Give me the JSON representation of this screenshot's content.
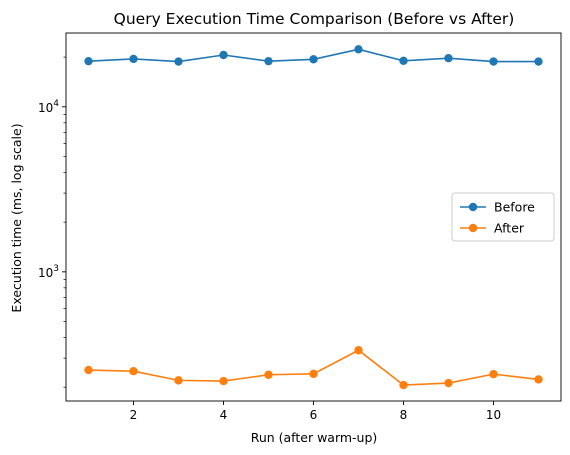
{
  "chart_data": {
    "type": "line",
    "title": "Query Execution Time Comparison (Before vs After)",
    "xlabel": "Run (after warm-up)",
    "ylabel": "Execution time (ms, log scale)",
    "x": [
      1,
      2,
      3,
      4,
      5,
      6,
      7,
      8,
      9,
      10,
      11
    ],
    "xlim": [
      0.5,
      11.5
    ],
    "xticks": [
      2,
      4,
      6,
      8,
      10
    ],
    "yscale": "log",
    "ylim": [
      165,
      28000
    ],
    "yticks_major": [
      1000,
      10000
    ],
    "ytick_labels": [
      {
        "base": "10",
        "exp": "3"
      },
      {
        "base": "10",
        "exp": "4"
      }
    ],
    "grid": false,
    "legend_position": "center-right",
    "series": [
      {
        "name": "Before",
        "color": "#1f77b4",
        "values": [
          18900,
          19500,
          18800,
          20600,
          18900,
          19400,
          22300,
          19000,
          19700,
          18800,
          18800
        ]
      },
      {
        "name": "After",
        "color": "#ff7f0e",
        "values": [
          254,
          250,
          220,
          218,
          238,
          241,
          335,
          206,
          212,
          240,
          223
        ]
      }
    ]
  }
}
